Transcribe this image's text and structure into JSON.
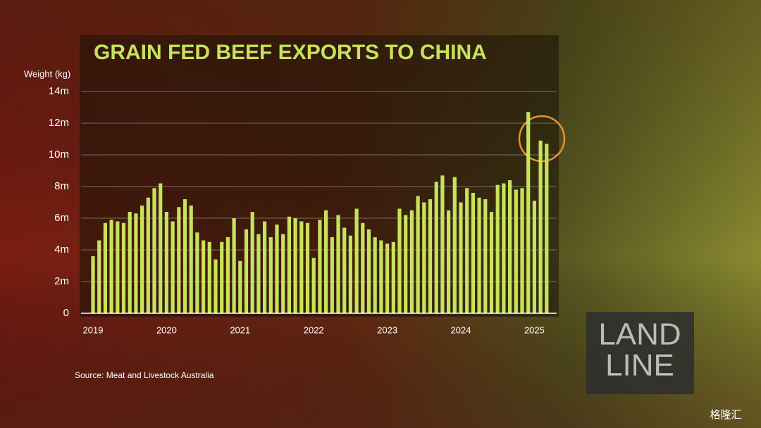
{
  "chart_data": {
    "type": "bar",
    "title": "GRAIN FED BEEF EXPORTS TO CHINA",
    "y_label": "Weight (kg)",
    "source": "Source:  Meat and Livestock Australia",
    "color": "#c6e35a",
    "grid": true,
    "categories": [
      "2019",
      null,
      null,
      null,
      null,
      null,
      null,
      null,
      null,
      null,
      null,
      null,
      "2020",
      null,
      null,
      null,
      null,
      null,
      null,
      null,
      null,
      null,
      null,
      null,
      "2021",
      null,
      null,
      null,
      null,
      null,
      null,
      null,
      null,
      null,
      null,
      null,
      "2022",
      null,
      null,
      null,
      null,
      null,
      null,
      null,
      null,
      null,
      null,
      null,
      "2023",
      null,
      null,
      null,
      null,
      null,
      null,
      null,
      null,
      null,
      null,
      null,
      "2024",
      null,
      null,
      null,
      null,
      null,
      null,
      null,
      null,
      null,
      null,
      null,
      "2025",
      null,
      null
    ],
    "values": [
      3600000,
      4600000,
      5700000,
      5900000,
      5800000,
      5700000,
      6400000,
      6300000,
      6800000,
      7300000,
      7900000,
      8200000,
      6400000,
      5800000,
      6700000,
      7200000,
      6800000,
      5100000,
      4600000,
      4500000,
      3400000,
      4500000,
      4800000,
      6000000,
      3300000,
      5300000,
      6400000,
      5000000,
      5800000,
      4800000,
      5600000,
      5000000,
      6100000,
      6000000,
      5800000,
      5700000,
      3500000,
      5900000,
      6500000,
      4800000,
      6200000,
      5400000,
      4900000,
      6600000,
      5700000,
      5300000,
      4800000,
      4600000,
      4400000,
      4500000,
      6600000,
      6200000,
      6500000,
      7400000,
      7000000,
      7200000,
      8300000,
      8700000,
      6500000,
      8600000,
      7000000,
      7900000,
      7600000,
      7300000,
      7200000,
      6400000,
      8100000,
      8200000,
      8400000,
      7800000,
      7900000,
      12700000,
      7100000,
      10900000,
      10700000
    ],
    "ylim": [
      0,
      14000000
    ],
    "yticks": [
      0,
      {
        "value": 2000000,
        "label": "2m"
      },
      {
        "value": 4000000,
        "label": "4m"
      },
      {
        "value": 6000000,
        "label": "6m"
      },
      {
        "value": 8000000,
        "label": "8m"
      },
      {
        "value": 10000000,
        "label": "10m"
      },
      {
        "value": 12000000,
        "label": "12m"
      },
      {
        "value": 14000000,
        "label": "14m"
      }
    ]
  },
  "logo": {
    "line1": "LAND",
    "line2": "LINE"
  },
  "watermark": "格隆汇"
}
